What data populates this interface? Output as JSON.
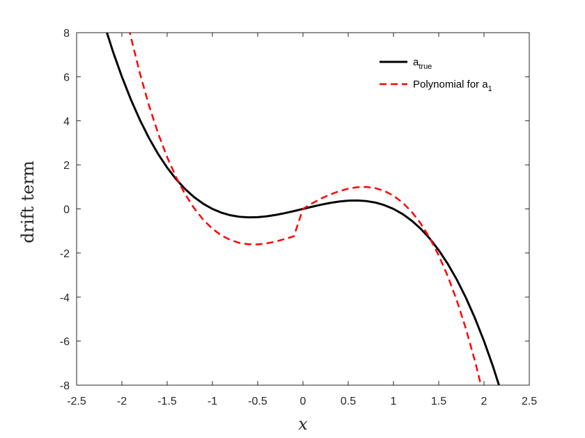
{
  "chart_data": {
    "type": "line",
    "xlabel": "x",
    "ylabel": "drift  term",
    "xlim": [
      -2.5,
      2.5
    ],
    "ylim": [
      -8,
      8
    ],
    "xticks": [
      -2.5,
      -2,
      -1.5,
      -1,
      -0.5,
      0,
      0.5,
      1,
      1.5,
      2,
      2.5
    ],
    "xtick_labels": [
      "-2.5",
      "-2",
      "-1.5",
      "-1",
      "-0.5",
      "0",
      "0.5",
      "1",
      "1.5",
      "2",
      "2.5"
    ],
    "yticks": [
      -8,
      -6,
      -4,
      -2,
      0,
      2,
      4,
      6,
      8
    ],
    "ytick_labels": [
      "-8",
      "-6",
      "-4",
      "-2",
      "0",
      "2",
      "4",
      "6",
      "8"
    ],
    "grid": false,
    "legend_position": "top-right",
    "series": [
      {
        "name_main": "a",
        "name_sub": "true",
        "color": "#000000",
        "dash": "solid",
        "x": [
          -2.2,
          -2.1,
          -2.0,
          -1.9,
          -1.8,
          -1.7,
          -1.6,
          -1.5,
          -1.4,
          -1.3,
          -1.2,
          -1.1,
          -1.0,
          -0.9,
          -0.8,
          -0.7,
          -0.6,
          -0.5,
          -0.4,
          -0.3,
          -0.2,
          -0.1,
          0.0,
          0.1,
          0.2,
          0.3,
          0.4,
          0.5,
          0.6,
          0.7,
          0.8,
          0.9,
          1.0,
          1.1,
          1.2,
          1.3,
          1.4,
          1.5,
          1.6,
          1.7,
          1.8,
          1.9,
          2.0,
          2.1,
          2.2
        ],
        "y": [
          8.448,
          7.161,
          6.0,
          4.959,
          4.032,
          3.213,
          2.496,
          1.875,
          1.344,
          0.897,
          0.528,
          0.231,
          0.0,
          -0.171,
          -0.288,
          -0.357,
          -0.384,
          -0.375,
          -0.336,
          -0.273,
          -0.192,
          -0.099,
          0.0,
          0.099,
          0.192,
          0.273,
          0.336,
          0.375,
          0.384,
          0.357,
          0.288,
          0.171,
          0.0,
          -0.231,
          -0.528,
          -0.897,
          -1.344,
          -1.875,
          -2.496,
          -3.213,
          -4.032,
          -4.959,
          -6.0,
          -7.161,
          -8.448
        ]
      },
      {
        "name_main": "Polynomial for a",
        "name_sub": "1",
        "color": "#ff0000",
        "dash": "dashed",
        "x": [
          -1.95,
          -1.9,
          -1.8,
          -1.7,
          -1.6,
          -1.5,
          -1.4,
          -1.3,
          -1.2,
          -1.1,
          -1.0,
          -0.9,
          -0.8,
          -0.7,
          -0.6,
          -0.5,
          -0.4,
          -0.3,
          -0.2,
          -0.1,
          0.0,
          0.1,
          0.2,
          0.3,
          0.4,
          0.5,
          0.6,
          0.7,
          0.8,
          0.9,
          1.0,
          1.1,
          1.2,
          1.3,
          1.4,
          1.5,
          1.6,
          1.7,
          1.8,
          1.9,
          2.0
        ],
        "y": [
          8.7,
          7.79,
          6.138,
          4.691,
          3.433,
          2.351,
          1.431,
          0.659,
          0.021,
          -0.496,
          -0.9,
          -1.203,
          -1.414,
          -1.545,
          -1.606,
          -1.609,
          -1.562,
          -1.479,
          -1.368,
          -1.242,
          -0.0,
          0.248,
          0.467,
          0.654,
          0.806,
          0.918,
          0.987,
          0.998,
          0.943,
          0.815,
          0.6,
          0.29,
          -0.125,
          -0.657,
          -1.315,
          -2.111,
          -3.056,
          -4.161,
          -5.441,
          -6.903,
          -8.56
        ]
      }
    ]
  }
}
